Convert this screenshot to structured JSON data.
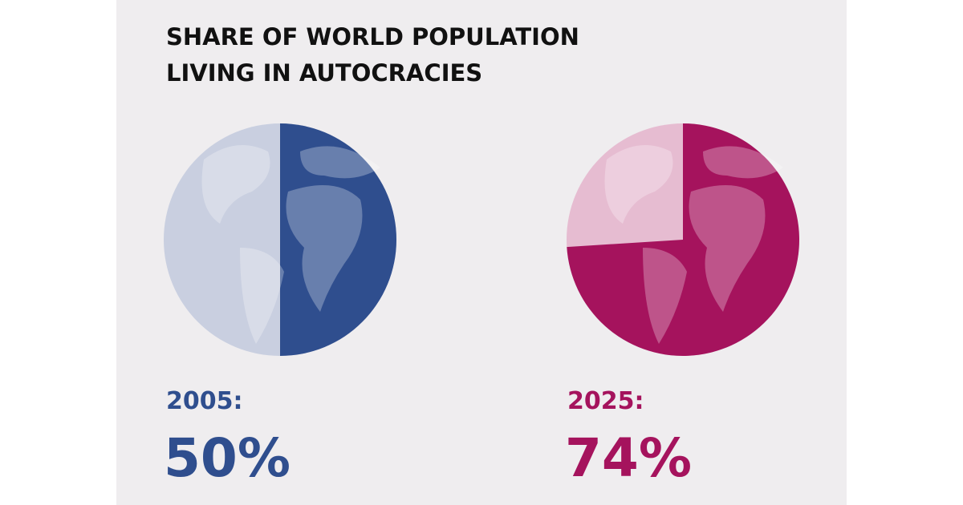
{
  "title": [
    "SHARE OF WORLD POPULATION",
    "LIVING IN AUTOCRACIES"
  ],
  "chart_data": [
    {
      "type": "pie",
      "label": "2005:",
      "values": [
        50
      ],
      "value_labels": [
        "50%"
      ],
      "color": "#2f4e8e",
      "background_color": "#c9cfe0"
    },
    {
      "type": "pie",
      "label": "2025:",
      "values": [
        74
      ],
      "value_labels": [
        "74%"
      ],
      "color": "#a5135d",
      "background_color": "#e6bcd1"
    }
  ]
}
